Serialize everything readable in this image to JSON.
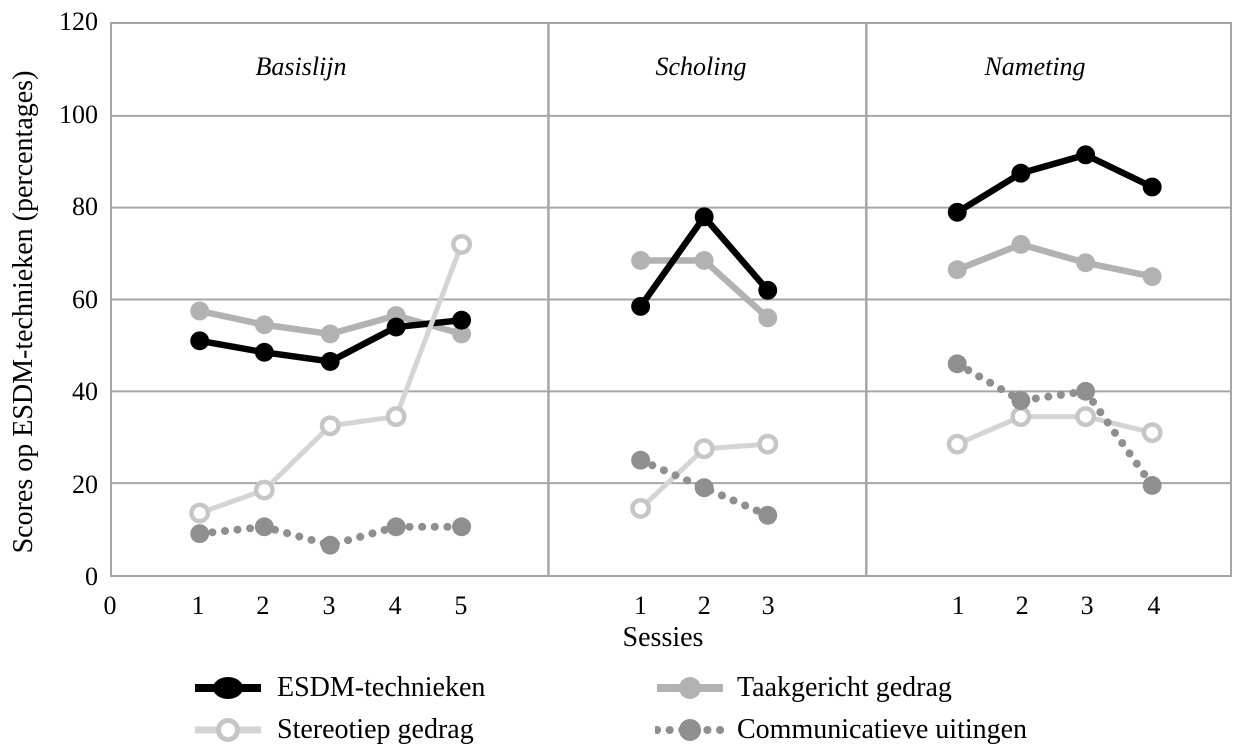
{
  "chart_data": {
    "type": "line",
    "title": "",
    "xlabel": "Sessies",
    "ylabel": "Scores op ESDM-technieken (percentages)",
    "ylim": [
      0,
      120
    ],
    "y_ticks": [
      0,
      20,
      40,
      60,
      80,
      100,
      120
    ],
    "grid": "horizontal",
    "legend_position": "bottom",
    "panels": [
      {
        "label": "Basislijn",
        "x_ticks": [
          "0",
          "1",
          "2",
          "3",
          "4",
          "5"
        ],
        "series": [
          {
            "name": "ESDM-technieken",
            "values": [
              51,
              48.5,
              46.5,
              54,
              55.5
            ]
          },
          {
            "name": "Taakgericht gedrag",
            "values": [
              57.5,
              54.5,
              52.5,
              56.5,
              52.5
            ]
          },
          {
            "name": "Stereotiep gedrag",
            "values": [
              13.5,
              18.5,
              32.5,
              34.5,
              72
            ]
          },
          {
            "name": "Communicatieve uitingen",
            "values": [
              9,
              10.5,
              6.5,
              10.5,
              10.5
            ]
          }
        ]
      },
      {
        "label": "Scholing",
        "x_ticks": [
          "1",
          "2",
          "3"
        ],
        "series": [
          {
            "name": "ESDM-technieken",
            "values": [
              58.5,
              78,
              62
            ]
          },
          {
            "name": "Taakgericht gedrag",
            "values": [
              68.5,
              68.5,
              56
            ]
          },
          {
            "name": "Stereotiep gedrag",
            "values": [
              14.5,
              27.5,
              28.5
            ]
          },
          {
            "name": "Communicatieve uitingen",
            "values": [
              25,
              19,
              13
            ]
          }
        ]
      },
      {
        "label": "Nameting",
        "x_ticks": [
          "1",
          "2",
          "3",
          "4"
        ],
        "series": [
          {
            "name": "ESDM-technieken",
            "values": [
              79,
              87.5,
              91.5,
              84.5
            ]
          },
          {
            "name": "Taakgericht gedrag",
            "values": [
              66.5,
              72,
              68,
              65
            ]
          },
          {
            "name": "Stereotiep gedrag",
            "values": [
              28.5,
              34.5,
              34.5,
              31
            ]
          },
          {
            "name": "Communicatieve uitingen",
            "values": [
              46,
              38,
              40,
              19.5
            ]
          }
        ]
      }
    ],
    "series_styles": [
      {
        "name": "ESDM-technieken",
        "key": "esdm-technieken",
        "color": "#000000",
        "marker": "filled",
        "line": "solid"
      },
      {
        "name": "Taakgericht gedrag",
        "key": "taakgericht-gedrag",
        "color": "#b2b2b2",
        "marker": "filled",
        "line": "solid"
      },
      {
        "name": "Stereotiep gedrag",
        "key": "stereotiep-gedrag",
        "color": "#d4d4d4",
        "marker": "open",
        "marker_fill": "#ffffff",
        "marker_stroke": "#c6c6c6",
        "line": "solid"
      },
      {
        "name": "Communicatieve uitingen",
        "key": "communicatieve-uitingen",
        "color": "#8f8f8f",
        "marker": "filled",
        "line": "dotted"
      }
    ],
    "legend": [
      [
        "ESDM-technieken",
        "Taakgericht gedrag"
      ],
      [
        "Stereotiep gedrag",
        "Communicatieve uitingen"
      ]
    ],
    "colors": {
      "grid": "#a6a6a6",
      "axis_text": "#000000",
      "background": "#ffffff"
    }
  }
}
